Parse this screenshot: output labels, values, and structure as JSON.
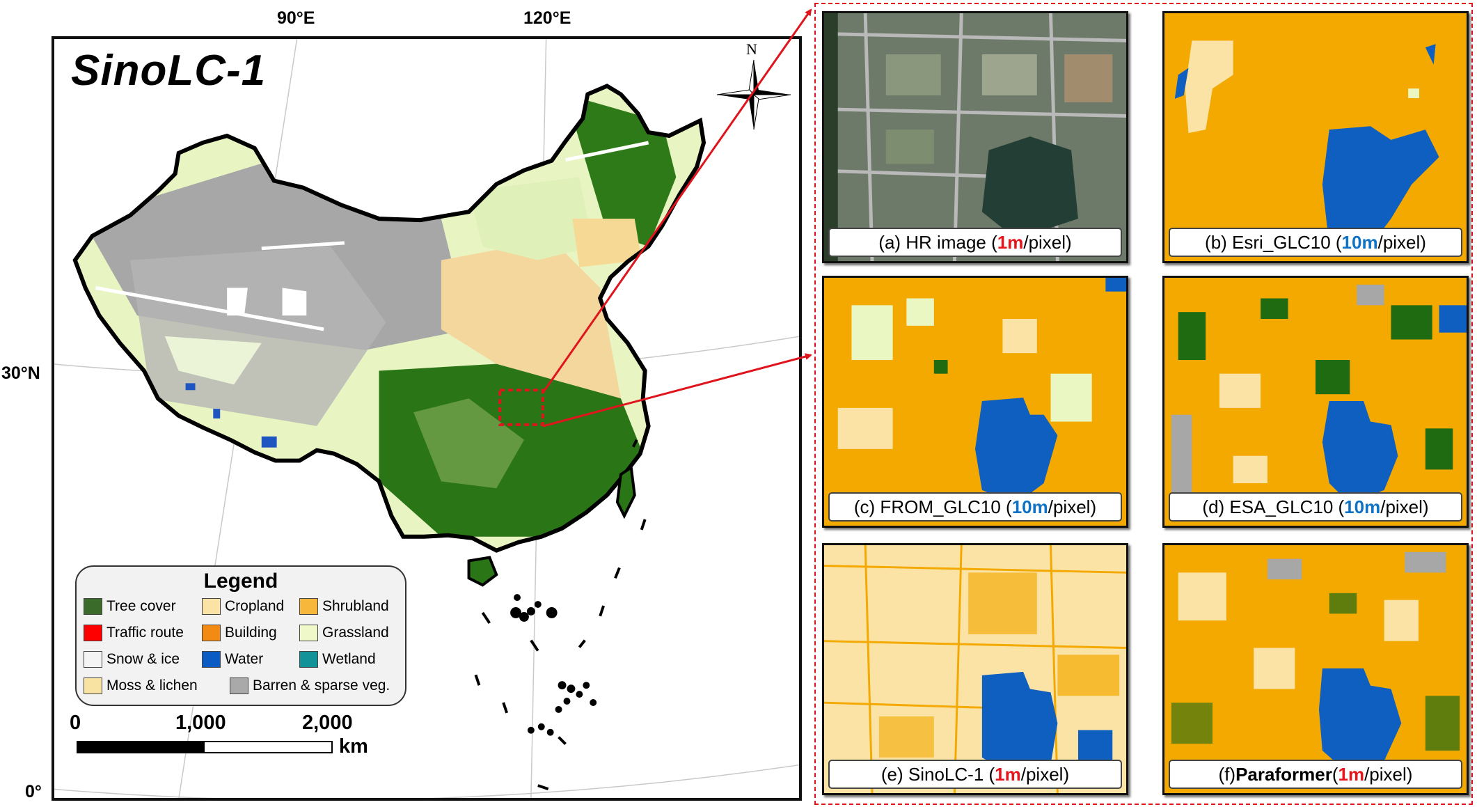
{
  "map": {
    "title": "SinoLC-1",
    "lon_labels": [
      "90°E",
      "120°E"
    ],
    "lat_labels": [
      "30°N",
      "0°"
    ],
    "north_label": "N"
  },
  "legend": {
    "title": "Legend",
    "items": [
      {
        "label": "Tree cover",
        "color": "#3a6b2a"
      },
      {
        "label": "Cropland",
        "color": "#fbe3a6"
      },
      {
        "label": "Shrubland",
        "color": "#f6b73a"
      },
      {
        "label": "Traffic route",
        "color": "#ff0000"
      },
      {
        "label": "Building",
        "color": "#f28a14"
      },
      {
        "label": "Grassland",
        "color": "#eef8c9"
      },
      {
        "label": "Snow & ice",
        "color": "#f4f4f4"
      },
      {
        "label": "Water",
        "color": "#0a5bc4"
      },
      {
        "label": "Wetland",
        "color": "#12939a"
      },
      {
        "label": "Moss & lichen",
        "color": "#f8e3a2"
      },
      {
        "label": "Barren & sparse veg.",
        "color": "#a9a9a9"
      }
    ]
  },
  "scale": {
    "ticks": [
      "0",
      "1,000",
      "2,000"
    ],
    "unit": "km"
  },
  "panels": [
    {
      "id": "a",
      "prefix": "(a)  HR image (",
      "res": "1m",
      "res_color": "red",
      "suffix": "/pixel)"
    },
    {
      "id": "b",
      "prefix": "(b) Esri_GLC10 (",
      "res": "10m",
      "res_color": "blue",
      "suffix": "/pixel)"
    },
    {
      "id": "c",
      "prefix": "(c) FROM_GLC10 (",
      "res": "10m",
      "res_color": "blue",
      "suffix": "/pixel)"
    },
    {
      "id": "d",
      "prefix": "(d) ESA_GLC10 (",
      "res": "10m",
      "res_color": "blue",
      "suffix": "/pixel)"
    },
    {
      "id": "e",
      "prefix": "(e) SinoLC-1 (",
      "res": "1m",
      "res_color": "red",
      "suffix": "/pixel)"
    },
    {
      "id": "f",
      "prefix": "(f) ",
      "bold": "Paraformer",
      "prefix2": " (",
      "res": "1m",
      "res_color": "red",
      "suffix": "/pixel)"
    }
  ],
  "colors": {
    "tree": "#1f6b12",
    "crop": "#fbe3a6",
    "grass": "#eaf7c3",
    "barren": "#a7a7a7",
    "water": "#0f5fc0",
    "building": "#f3a900",
    "highlight": "#e0141c"
  }
}
